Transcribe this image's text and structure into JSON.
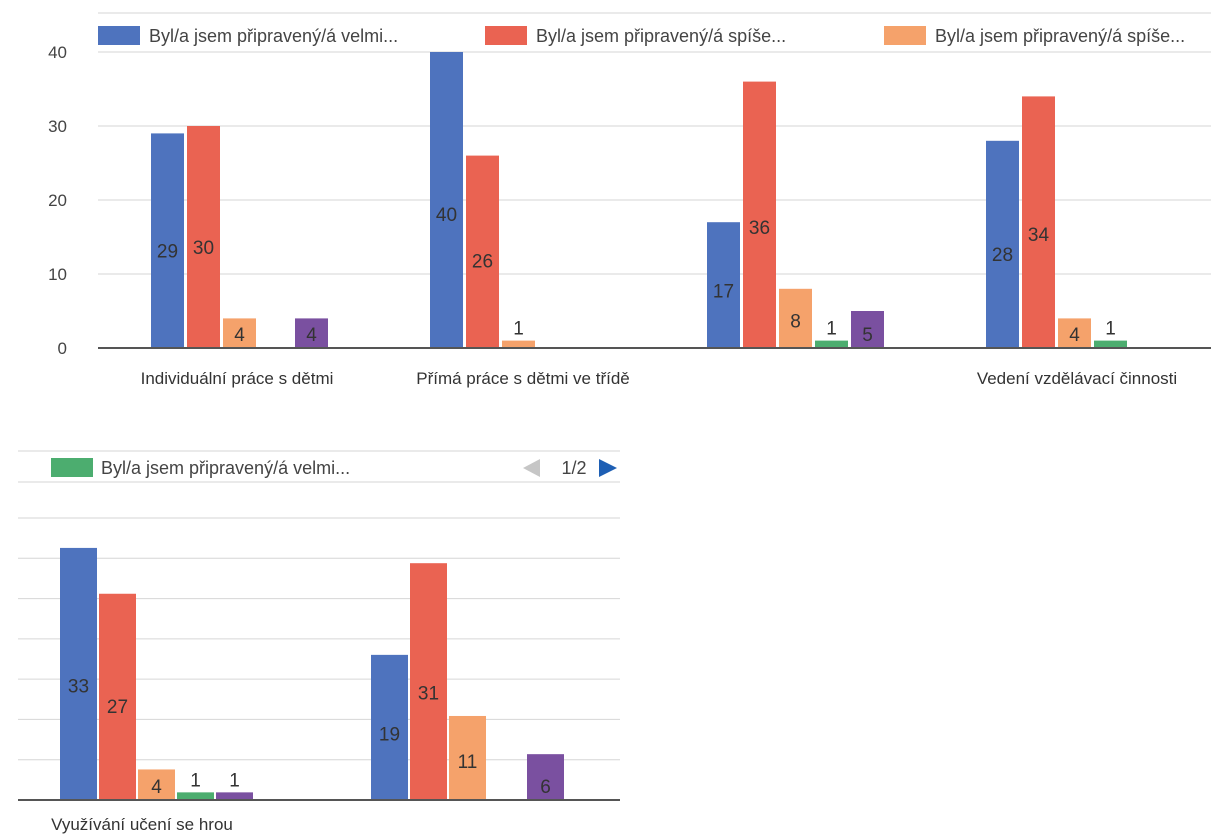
{
  "colors": {
    "series": [
      "#4e73be",
      "#ea6352",
      "#f5a26b",
      "#4cad6f",
      "#7a50a0"
    ],
    "grid": "#d6d6d6",
    "axis": "#555555",
    "nav_active": "#1e5fb4",
    "nav_inactive": "#c6c6c6"
  },
  "legend": {
    "top_entries": [
      "Byl/a jsem připravený/á velmi...",
      "Byl/a jsem připravený/á spíše...",
      "Byl/a jsem připravený/á spíše..."
    ],
    "bottom_entry": "Byl/a jsem připravený/á velmi...",
    "page_indicator": "1/2",
    "prev_icon": "triangle-left-icon",
    "next_icon": "triangle-right-icon"
  },
  "chart_data": [
    {
      "type": "bar",
      "yticks": [
        "0",
        "10",
        "20",
        "30",
        "40"
      ],
      "ylim": [
        0,
        40
      ],
      "categories": [
        "Individuální práce s dětmi",
        "Přímá práce s dětmi ve třídě",
        "",
        "Vedení vzdělávací činnosti"
      ],
      "series": [
        {
          "values": [
            29,
            40,
            17,
            28
          ]
        },
        {
          "values": [
            30,
            26,
            36,
            34
          ]
        },
        {
          "values": [
            4,
            1,
            8,
            4
          ]
        },
        {
          "values": [
            0,
            0,
            1,
            1
          ]
        },
        {
          "values": [
            4,
            0,
            5,
            0
          ]
        }
      ],
      "labels": [
        [
          "29",
          "40",
          "17",
          "28"
        ],
        [
          "30",
          "26",
          "36",
          "34"
        ],
        [
          "4",
          "1",
          "8",
          "4"
        ],
        [
          "",
          "",
          "1",
          "1"
        ],
        [
          "4",
          "",
          "5",
          ""
        ]
      ],
      "grid": true
    },
    {
      "type": "bar",
      "ylim": [
        0,
        36
      ],
      "categories": [
        "Využívání učení se hrou",
        ""
      ],
      "series": [
        {
          "values": [
            33,
            19
          ]
        },
        {
          "values": [
            27,
            31
          ]
        },
        {
          "values": [
            4,
            11
          ]
        },
        {
          "values": [
            1,
            0
          ]
        },
        {
          "values": [
            1,
            6
          ]
        }
      ],
      "labels": [
        [
          "33",
          "19"
        ],
        [
          "27",
          "31"
        ],
        [
          "4",
          "11"
        ],
        [
          "1",
          ""
        ],
        [
          "1",
          "6"
        ]
      ],
      "grid": true
    }
  ]
}
